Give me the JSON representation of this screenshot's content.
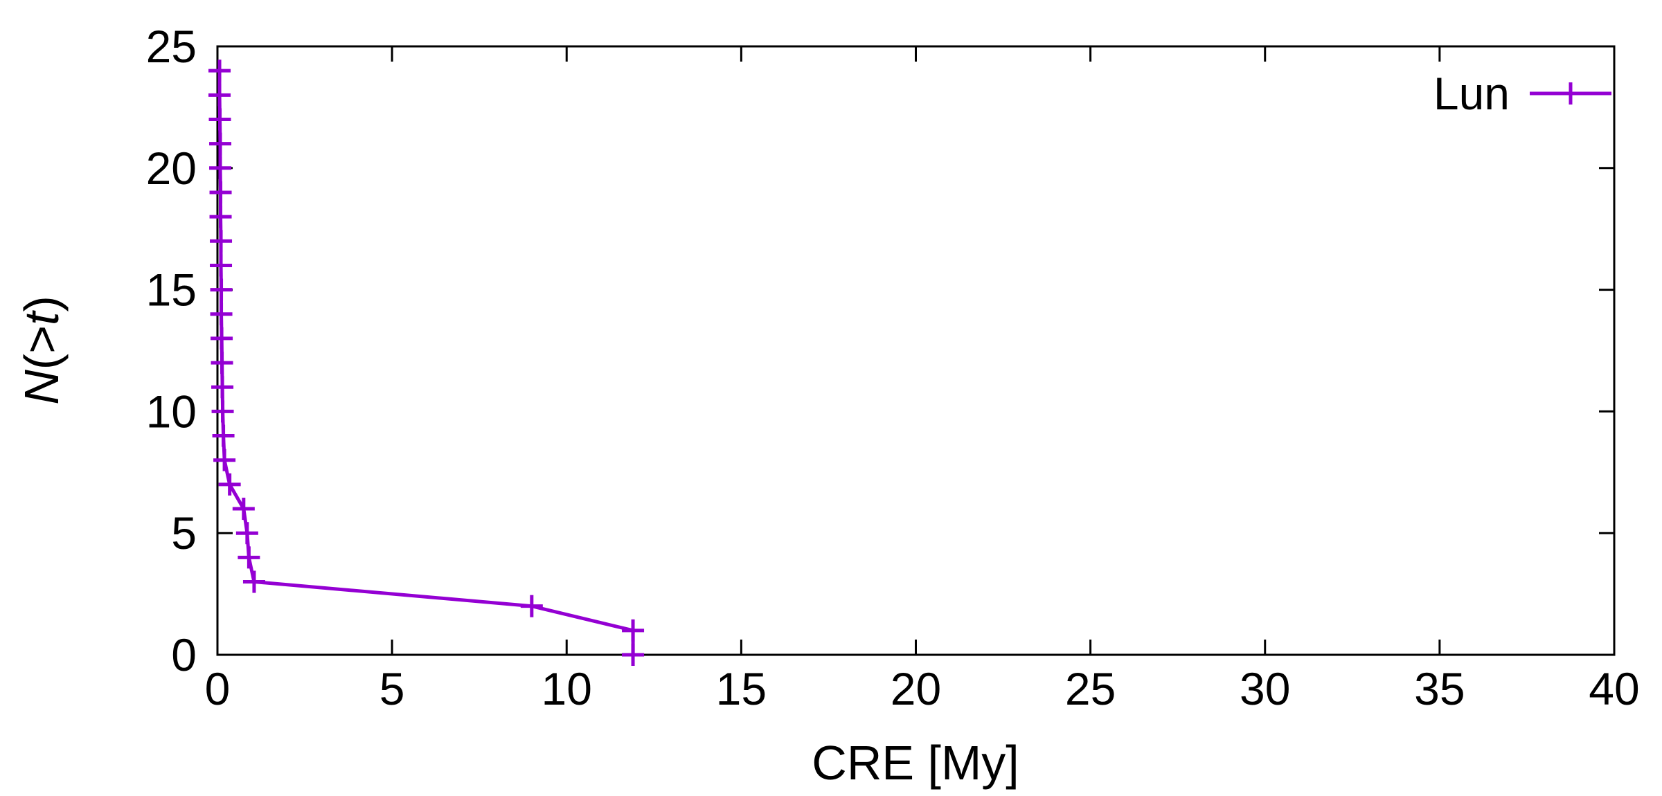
{
  "chart_data": {
    "type": "line",
    "title": "",
    "xlabel": "CRE [My]",
    "ylabel": "N(>t)",
    "ylabel_rich": [
      {
        "t": "N",
        "i": true
      },
      {
        "t": "(>",
        "i": false
      },
      {
        "t": "t",
        "i": true
      },
      {
        "t": ")",
        "i": false
      }
    ],
    "xlim": [
      0,
      40
    ],
    "ylim": [
      0,
      25
    ],
    "xticks": [
      0,
      5,
      10,
      15,
      20,
      25,
      30,
      35,
      40
    ],
    "yticks": [
      0,
      5,
      10,
      15,
      20,
      25
    ],
    "grid": false,
    "legend_position": "top-right-inside",
    "series": [
      {
        "name": "Lun",
        "color": "#9400d3",
        "marker": "plus",
        "points": [
          [
            0.06,
            24
          ],
          [
            0.06,
            23
          ],
          [
            0.07,
            22
          ],
          [
            0.08,
            21
          ],
          [
            0.08,
            20
          ],
          [
            0.09,
            19
          ],
          [
            0.09,
            18
          ],
          [
            0.1,
            17
          ],
          [
            0.1,
            16
          ],
          [
            0.11,
            15
          ],
          [
            0.11,
            14
          ],
          [
            0.12,
            13
          ],
          [
            0.13,
            12
          ],
          [
            0.14,
            11
          ],
          [
            0.15,
            10
          ],
          [
            0.17,
            9
          ],
          [
            0.2,
            8
          ],
          [
            0.35,
            7
          ],
          [
            0.75,
            6
          ],
          [
            0.85,
            5
          ],
          [
            0.9,
            4
          ],
          [
            1.05,
            3
          ],
          [
            9.0,
            2
          ],
          [
            11.9,
            1
          ],
          [
            11.9,
            0
          ]
        ]
      }
    ]
  },
  "colors": {
    "axis": "#000000",
    "background": "#ffffff",
    "series_purple": "#9400d3"
  }
}
